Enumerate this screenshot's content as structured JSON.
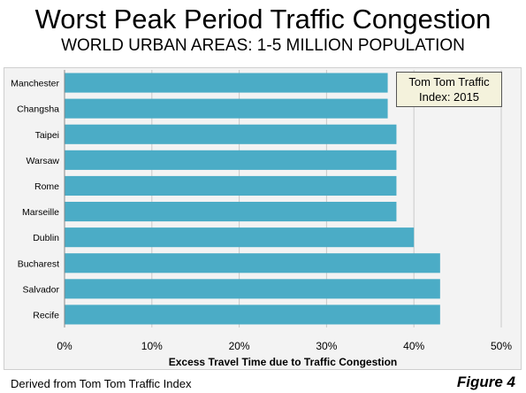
{
  "title": "Worst Peak Period Traffic Congestion",
  "subtitle": "WORLD URBAN AREAS: 1-5 MILLION POPULATION",
  "annotation": {
    "line1": "Tom Tom Traffic",
    "line2": "Index: 2015"
  },
  "footer": {
    "source": "Derived from Tom Tom Traffic Index",
    "figure": "Figure 4"
  },
  "colors": {
    "bar": "#4bacc6",
    "plot_background": "#f3f3f3"
  },
  "chart_data": {
    "type": "bar",
    "orientation": "horizontal",
    "categories": [
      "Manchester",
      "Changsha",
      "Taipei",
      "Warsaw",
      "Rome",
      "Marseille",
      "Dublin",
      "Bucharest",
      "Salvador",
      "Recife"
    ],
    "values": [
      0.37,
      0.37,
      0.38,
      0.38,
      0.38,
      0.38,
      0.4,
      0.43,
      0.43,
      0.43
    ],
    "xlabel": "Excess Travel Time due to Traffic Congestion",
    "xlim": [
      0,
      0.5
    ],
    "xticks": [
      "0%",
      "10%",
      "20%",
      "30%",
      "40%",
      "50%"
    ],
    "grid": true
  }
}
